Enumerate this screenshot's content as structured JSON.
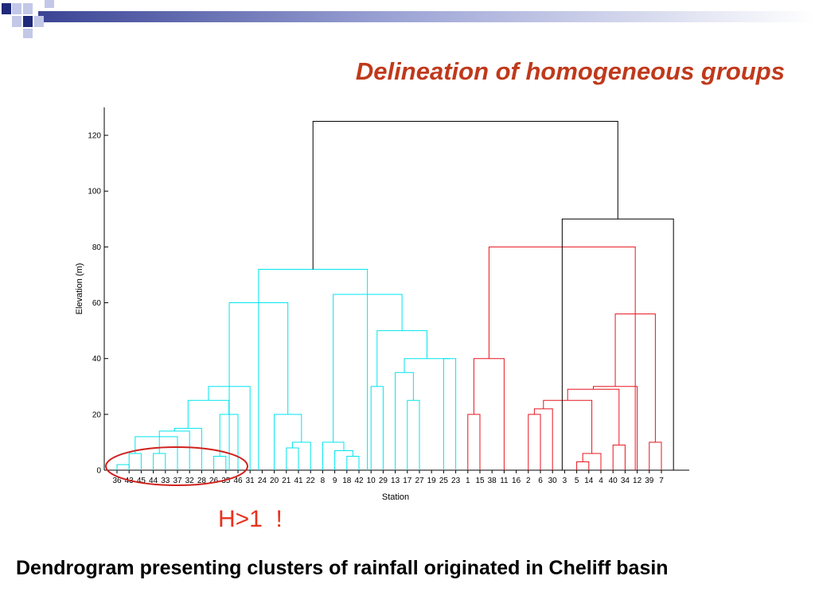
{
  "slide": {
    "title": "Delineation of homogeneous groups",
    "annotation": "H>1  !",
    "caption": "Dendrogram presenting clusters of rainfall originated in Cheliff basin"
  },
  "colors": {
    "title": "#c0391b",
    "annotation": "#e8321e",
    "cluster_cyan": "#00e5ee",
    "cluster_red": "#e8141e",
    "link_black": "#000000",
    "deco_navy": "#1f2a7a",
    "deco_light": "#c3c8e8"
  },
  "chart_data": {
    "type": "dendrogram",
    "xlabel": "Station",
    "ylabel": "Elevation (m)",
    "ylim": [
      0,
      130
    ],
    "yticks": [
      0,
      20,
      40,
      60,
      80,
      100,
      120
    ],
    "leaves": [
      "36",
      "43",
      "45",
      "44",
      "33",
      "37",
      "32",
      "28",
      "26",
      "35",
      "46",
      "31",
      "24",
      "20",
      "21",
      "41",
      "22",
      "8",
      "9",
      "18",
      "42",
      "10",
      "29",
      "13",
      "17",
      "27",
      "19",
      "25",
      "23",
      "1",
      "15",
      "38",
      "11",
      "16",
      "2",
      "6",
      "30",
      "3",
      "5",
      "14",
      "4",
      "40",
      "34",
      "12",
      "39",
      "7"
    ],
    "merges": [
      {
        "a": 1,
        "b": 2,
        "h": 2,
        "color": "cyan"
      },
      {
        "a": 2,
        "b": 3,
        "h": 6,
        "color": "cyan"
      },
      {
        "a": 4,
        "b": 5,
        "h": 6,
        "color": "cyan"
      },
      {
        "a": 9,
        "b": 10,
        "h": 5,
        "color": "cyan"
      },
      {
        "a": 2.5,
        "b": 6,
        "h": 12,
        "color": "cyan"
      },
      {
        "a": 4.5,
        "b": 7,
        "h": 14,
        "color": "cyan"
      },
      {
        "a": 5.75,
        "b": 8,
        "h": 15,
        "color": "cyan"
      },
      {
        "a": 9.5,
        "b": 11,
        "h": 20,
        "color": "cyan"
      },
      {
        "a": 6.875,
        "b": 10.25,
        "h": 25,
        "color": "cyan"
      },
      {
        "a": 8.5625,
        "b": 12,
        "h": 30,
        "color": "cyan"
      },
      {
        "a": 15,
        "b": 16,
        "h": 8,
        "color": "cyan"
      },
      {
        "a": 15.5,
        "b": 17,
        "h": 10,
        "color": "cyan"
      },
      {
        "a": 14,
        "b": 16.25,
        "h": 20,
        "color": "cyan"
      },
      {
        "a": 10.28,
        "b": 15.125,
        "h": 60,
        "color": "cyan"
      },
      {
        "a": 20,
        "b": 21,
        "h": 5,
        "color": "cyan"
      },
      {
        "a": 19,
        "b": 20.5,
        "h": 7,
        "color": "cyan"
      },
      {
        "a": 18,
        "b": 19.75,
        "h": 10,
        "color": "cyan"
      },
      {
        "a": 25,
        "b": 26,
        "h": 25,
        "color": "cyan"
      },
      {
        "a": 24,
        "b": 25.5,
        "h": 35,
        "color": "cyan"
      },
      {
        "a": 28,
        "b": 29,
        "h": 40,
        "color": "cyan"
      },
      {
        "a": 24.75,
        "b": 28.5,
        "h": 40,
        "color": "cyan"
      },
      {
        "a": 22,
        "b": 23,
        "h": 30,
        "color": "cyan"
      },
      {
        "a": 22.5,
        "b": 26.625,
        "h": 50,
        "color": "cyan"
      },
      {
        "a": 18.875,
        "b": 24.5625,
        "h": 63,
        "color": "cyan"
      },
      {
        "a": 12.7,
        "b": 21.7,
        "h": 72,
        "color": "cyan"
      },
      {
        "a": 30,
        "b": 31,
        "h": 20,
        "color": "red"
      },
      {
        "a": 30.5,
        "b": 33,
        "h": 40,
        "color": "red"
      },
      {
        "a": 35,
        "b": 36,
        "h": 20,
        "color": "red"
      },
      {
        "a": 35.5,
        "b": 37,
        "h": 22,
        "color": "red"
      },
      {
        "a": 39,
        "b": 40,
        "h": 3,
        "color": "red"
      },
      {
        "a": 39.5,
        "b": 41,
        "h": 6,
        "color": "red"
      },
      {
        "a": 36.25,
        "b": 40.25,
        "h": 25,
        "color": "red"
      },
      {
        "a": 42,
        "b": 43,
        "h": 9,
        "color": "red"
      },
      {
        "a": 38.25,
        "b": 42.5,
        "h": 29,
        "color": "red"
      },
      {
        "a": 40.375,
        "b": 44,
        "h": 30,
        "color": "red"
      },
      {
        "a": 45,
        "b": 46,
        "h": 10,
        "color": "red"
      },
      {
        "a": 42.1875,
        "b": 45.5,
        "h": 56,
        "color": "red"
      },
      {
        "a": 31.75,
        "b": 43.84,
        "h": 80,
        "color": "red"
      },
      {
        "a": 37.8,
        "b": 47,
        "h": 90,
        "color": "black"
      },
      {
        "a": 17.2,
        "b": 42.4,
        "h": 125,
        "color": "black"
      }
    ]
  }
}
